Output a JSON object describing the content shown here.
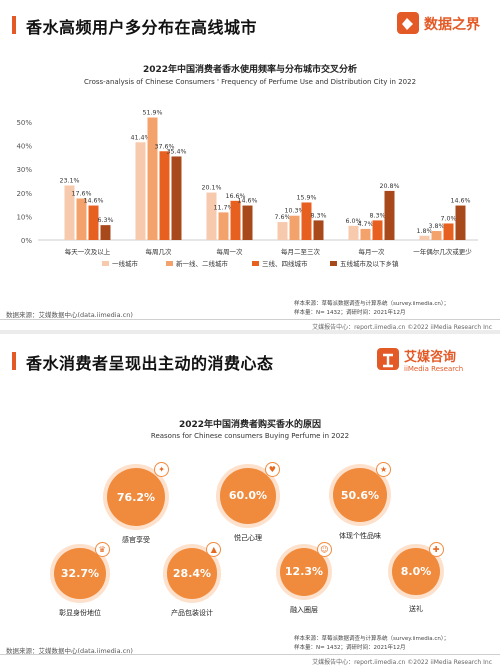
{
  "panel1": {
    "section_title": "香水高频用户多分布在高线城市",
    "logo_text": "数据之界",
    "chart_title": "2022年中国消费者香水使用频率与分布城市交叉分析",
    "chart_subtitle": "Cross-analysis of Chinese Consumers ' Frequency of Perfume Use and Distribution City  in 2022",
    "note_line1": "样本来源：草莓派数据调查与计算系统（survey.iimedia.cn）；",
    "note_line2": "样本量：N= 1432；调研时间：2021年12月",
    "footer_left": "数据来源：艾媒数据中心(data.iimedia.cn)",
    "footer_right": "艾媒报告中心：report.iimedia.cn    ©2022  iiMedia Research  Inc"
  },
  "panel2": {
    "section_title": "香水消费者呈现出主动的消费心态",
    "logo_cn": "艾媒咨询",
    "logo_en": "iiMedia Research",
    "chart_title": "2022年中国消费者购买香水的原因",
    "chart_subtitle": "Reasons for Chinese consumers Buying Perfume in 2022",
    "note_line1": "样本来源：草莓派数据调查与计算系统（survey.iimedia.cn）；",
    "note_line2": "样本量：N= 1432；调研时间：2021年12月",
    "footer_left": "数据来源：艾媒数据中心(data.iimedia.cn)",
    "footer_right": "艾媒报告中心：report.iimedia.cn    ©2022  iiMedia Research  Inc"
  },
  "colors": {
    "accent": "#e35a26",
    "series": [
      "#f7c9ad",
      "#f4a26c",
      "#e8601f",
      "#a8491c"
    ],
    "bubble": "#f08a3c"
  },
  "chart_data": [
    {
      "type": "bar",
      "title": "2022年中国消费者香水使用频率与分布城市交叉分析",
      "subtitle": "Cross-analysis of Chinese Consumers ' Frequency of Perfume Use and Distribution City  in 2022",
      "categories": [
        "每天一次及以上",
        "每周几次",
        "每周一次",
        "每月二至三次",
        "每月一次",
        "一年偶尔几次或更少"
      ],
      "y_ticks": [
        "0%",
        "10%",
        "20%",
        "30%",
        "40%",
        "50%"
      ],
      "ylim": [
        0,
        50
      ],
      "legend_position": "bottom",
      "series": [
        {
          "name": "一线城市",
          "values": [
            23.1,
            41.4,
            20.1,
            7.6,
            6.0,
            1.8
          ]
        },
        {
          "name": "新一线、二线城市",
          "values": [
            17.6,
            51.9,
            11.7,
            10.3,
            4.7,
            3.8
          ]
        },
        {
          "name": "三线、四线城市",
          "values": [
            14.6,
            37.6,
            16.6,
            15.9,
            8.3,
            7.0
          ]
        },
        {
          "name": "五线城市及以下乡镇",
          "values": [
            6.3,
            35.4,
            14.6,
            8.3,
            20.8,
            14.6
          ]
        }
      ]
    },
    {
      "type": "bubble",
      "title": "2022年中国消费者购买香水的原因",
      "subtitle": "Reasons for Chinese consumers Buying Perfume in 2022",
      "categories": [
        "感官享受",
        "悦己心理",
        "体现个性品味",
        "彰显身份地位",
        "产品包装设计",
        "融入圈层",
        "送礼"
      ],
      "values": [
        76.2,
        60.0,
        50.6,
        32.7,
        28.4,
        12.3,
        8.0
      ],
      "icons": [
        "sparkle-icon",
        "heart-icon",
        "star-icon",
        "crown-icon",
        "bottle-icon",
        "people-icon",
        "gift-icon"
      ]
    }
  ]
}
